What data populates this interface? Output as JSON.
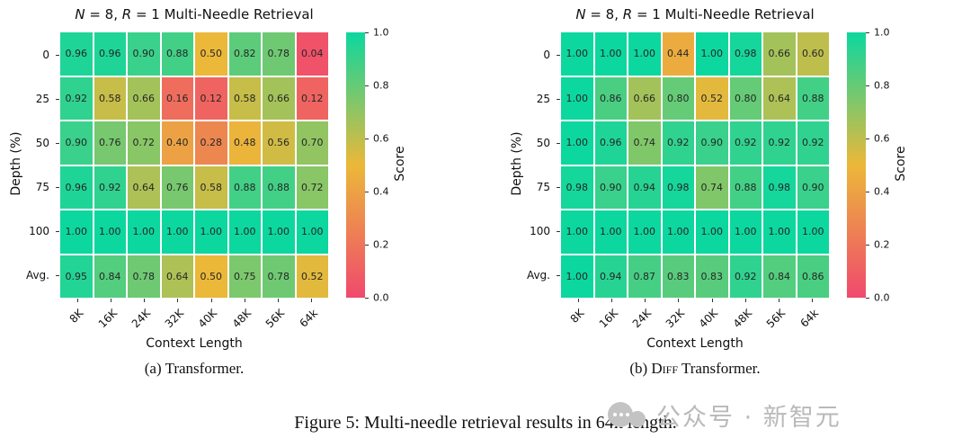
{
  "figure": {
    "caption": "Figure 5: Multi-needle retrieval results in 64k length.",
    "watermark_text": "公众号 · 新智元"
  },
  "colors": {
    "cmap_low": "#F0496E",
    "cmap_mid": "#EBB839",
    "cmap_high": "#0CD79F",
    "cell_text": "#262626",
    "watermark": "#b9b9b9"
  },
  "chart_data": [
    {
      "type": "heatmap",
      "title_parts": {
        "n": "N",
        "mid": " = 8, ",
        "r": "R",
        "rest": " = 1 Multi-Needle Retrieval"
      },
      "caption": {
        "prefix": "(a) ",
        "sc": "",
        "rest": "Transformer."
      },
      "xlabel": "Context Length",
      "ylabel": "Depth (%)",
      "colorbar_label": "Score",
      "colorbar_ticks": [
        "1.0",
        "0.8",
        "0.6",
        "0.4",
        "0.2",
        "0.0"
      ],
      "x_ticks": [
        "8K",
        "16K",
        "24K",
        "32K",
        "40K",
        "48K",
        "56K",
        "64k"
      ],
      "y_ticks": [
        "0",
        "25",
        "50",
        "75",
        "100",
        "Avg."
      ],
      "score_range": [
        0.0,
        1.0
      ],
      "values": [
        [
          0.96,
          0.96,
          0.9,
          0.88,
          0.5,
          0.82,
          0.78,
          0.04
        ],
        [
          0.92,
          0.58,
          0.66,
          0.16,
          0.12,
          0.58,
          0.66,
          0.12
        ],
        [
          0.9,
          0.76,
          0.72,
          0.4,
          0.28,
          0.48,
          0.56,
          0.7
        ],
        [
          0.96,
          0.92,
          0.64,
          0.76,
          0.58,
          0.88,
          0.88,
          0.72
        ],
        [
          1.0,
          1.0,
          1.0,
          1.0,
          1.0,
          1.0,
          1.0,
          1.0
        ],
        [
          0.95,
          0.84,
          0.78,
          0.64,
          0.5,
          0.75,
          0.78,
          0.52
        ]
      ]
    },
    {
      "type": "heatmap",
      "title_parts": {
        "n": "N",
        "mid": " = 8, ",
        "r": "R",
        "rest": " = 1 Multi-Needle Retrieval"
      },
      "caption": {
        "prefix": "(b) ",
        "sc": "Diff",
        "rest": " Transformer."
      },
      "xlabel": "Context Length",
      "ylabel": "Depth (%)",
      "colorbar_label": "Score",
      "colorbar_ticks": [
        "1.0",
        "0.8",
        "0.6",
        "0.4",
        "0.2",
        "0.0"
      ],
      "x_ticks": [
        "8K",
        "16K",
        "24K",
        "32K",
        "40K",
        "48K",
        "56K",
        "64k"
      ],
      "y_ticks": [
        "0",
        "25",
        "50",
        "75",
        "100",
        "Avg."
      ],
      "score_range": [
        0.0,
        1.0
      ],
      "values": [
        [
          1.0,
          1.0,
          1.0,
          0.44,
          1.0,
          0.98,
          0.66,
          0.6
        ],
        [
          1.0,
          0.86,
          0.66,
          0.8,
          0.52,
          0.8,
          0.64,
          0.88
        ],
        [
          1.0,
          0.96,
          0.74,
          0.92,
          0.9,
          0.92,
          0.92,
          0.92
        ],
        [
          0.98,
          0.9,
          0.94,
          0.98,
          0.74,
          0.88,
          0.98,
          0.9
        ],
        [
          1.0,
          1.0,
          1.0,
          1.0,
          1.0,
          1.0,
          1.0,
          1.0
        ],
        [
          1.0,
          0.94,
          0.87,
          0.83,
          0.83,
          0.92,
          0.84,
          0.86
        ]
      ]
    }
  ]
}
